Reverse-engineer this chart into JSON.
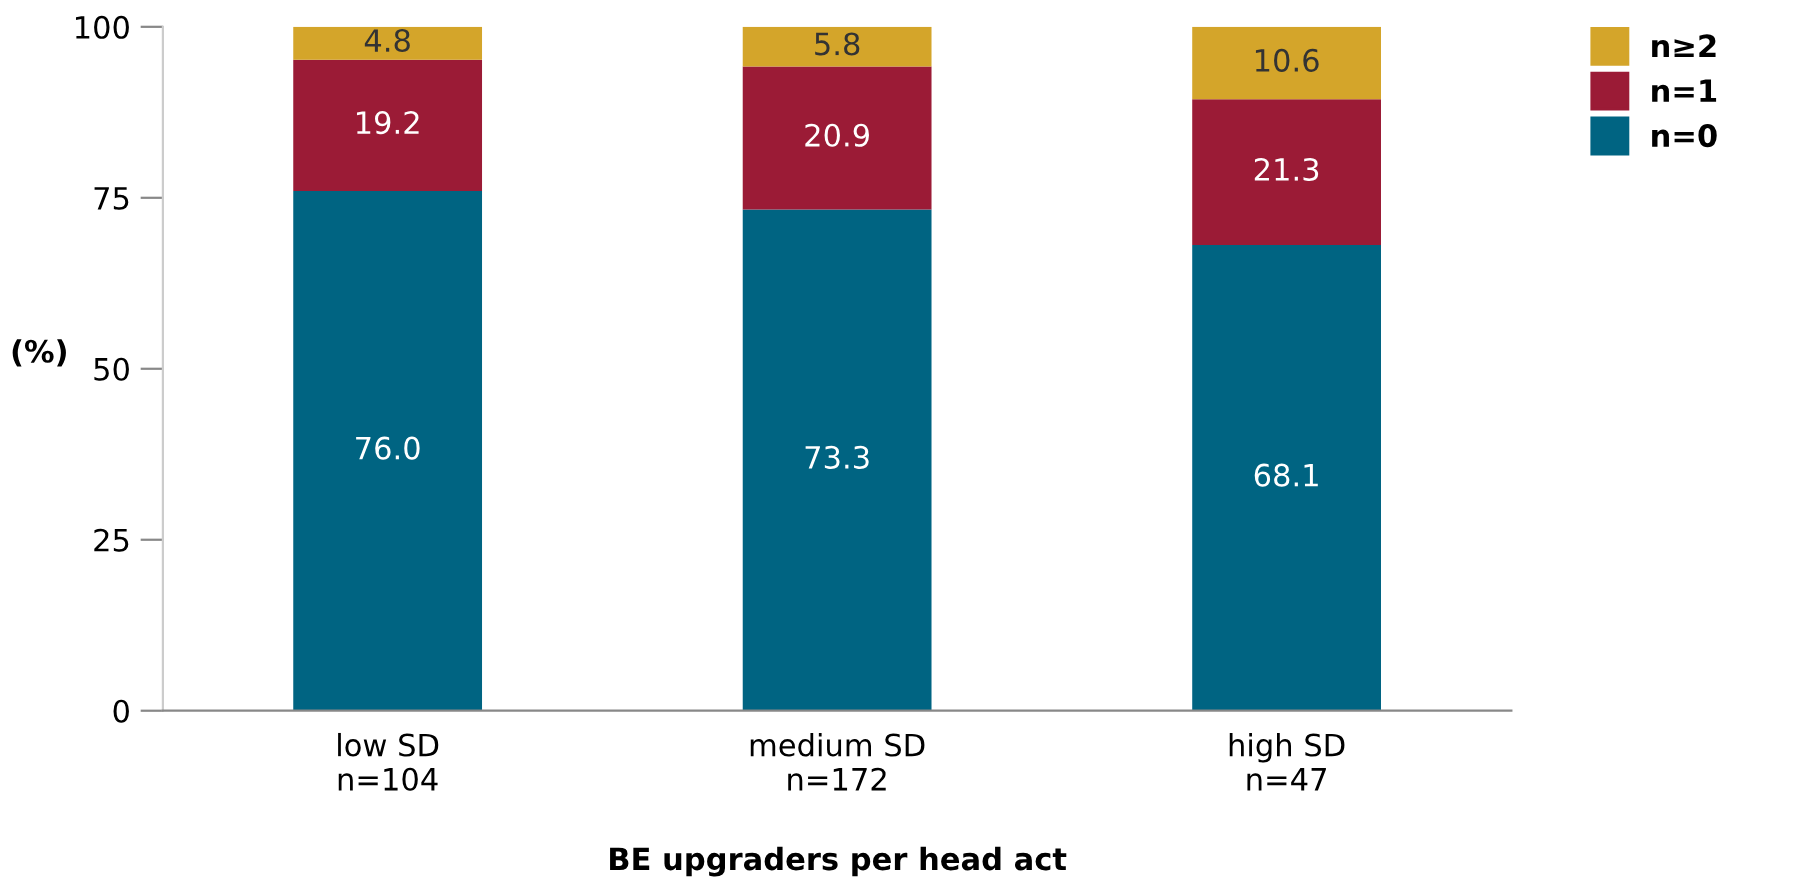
{
  "chart_data": {
    "type": "bar",
    "stacked": true,
    "xlabel": "BE upgraders per head act",
    "ylabel": "(%)",
    "categories": [
      "low SD\nn=104",
      "medium SD\nn=172",
      "high SD\nn=47"
    ],
    "series": [
      {
        "name": "n=0",
        "color": "#006482",
        "values": [
          76.0,
          73.3,
          68.1
        ],
        "value_labels": [
          "76.0",
          "73.3",
          "68.1"
        ]
      },
      {
        "name": "n=1",
        "color": "#9b1b36",
        "values": [
          19.2,
          20.9,
          21.3
        ],
        "value_labels": [
          "19.2",
          "20.9",
          "21.3"
        ]
      },
      {
        "name": "n≥2",
        "color": "#d4a52a",
        "values": [
          4.8,
          5.8,
          10.6
        ],
        "value_labels": [
          "4.8",
          "5.8",
          "10.6"
        ]
      }
    ],
    "ylim": [
      0,
      100
    ],
    "yticks": [
      0,
      25,
      50,
      75,
      100
    ],
    "grid": false,
    "legend": "top right"
  }
}
